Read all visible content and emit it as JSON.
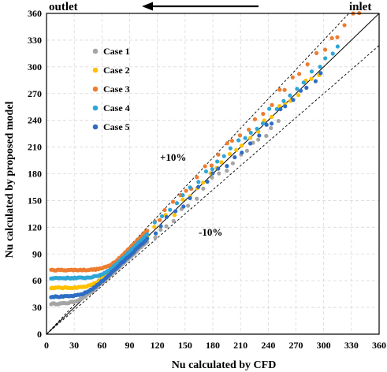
{
  "chart_data": {
    "type": "scatter",
    "title": "",
    "xlabel": "Nu calculated by CFD",
    "ylabel": "Nu  calculated by proposed model",
    "xlim": [
      0,
      360
    ],
    "ylim": [
      0,
      360
    ],
    "xticks": [
      0,
      30,
      60,
      90,
      120,
      150,
      180,
      210,
      240,
      270,
      300,
      330,
      360
    ],
    "yticks": [
      0,
      30,
      60,
      90,
      120,
      150,
      180,
      210,
      240,
      270,
      300,
      330,
      360
    ],
    "grid": true,
    "legend_position": "top-left",
    "annotations": {
      "outlet": "outlet",
      "inlet": "inlet",
      "plus10": "+10%",
      "minus10": "-10%"
    },
    "reference_lines": [
      {
        "style": "solid",
        "factor": 1.0
      },
      {
        "style": "dashed",
        "factor": 1.1
      },
      {
        "style": "dashed",
        "factor": 0.9
      }
    ],
    "series": [
      {
        "name": "Case 1",
        "color": "#a5a5a5",
        "plateau": 34,
        "x_start": 5,
        "x_knee": 75,
        "slope": 0.955,
        "x_end": 255
      },
      {
        "name": "Case 2",
        "color": "#ffc000",
        "plateau": 52,
        "x_start": 5,
        "x_knee": 78,
        "slope": 1.0,
        "x_end": 300
      },
      {
        "name": "Case 3",
        "color": "#ed7d31",
        "plateau": 72,
        "x_start": 5,
        "x_knee": 72,
        "slope": 1.07,
        "x_end": 340
      },
      {
        "name": "Case 4",
        "color": "#2ea6d6",
        "plateau": 63,
        "x_start": 5,
        "x_knee": 75,
        "slope": 1.03,
        "x_end": 320
      },
      {
        "name": "Case 5",
        "color": "#2e6dc4",
        "plateau": 42,
        "x_start": 5,
        "x_knee": 80,
        "slope": 0.98,
        "x_end": 300
      }
    ]
  }
}
